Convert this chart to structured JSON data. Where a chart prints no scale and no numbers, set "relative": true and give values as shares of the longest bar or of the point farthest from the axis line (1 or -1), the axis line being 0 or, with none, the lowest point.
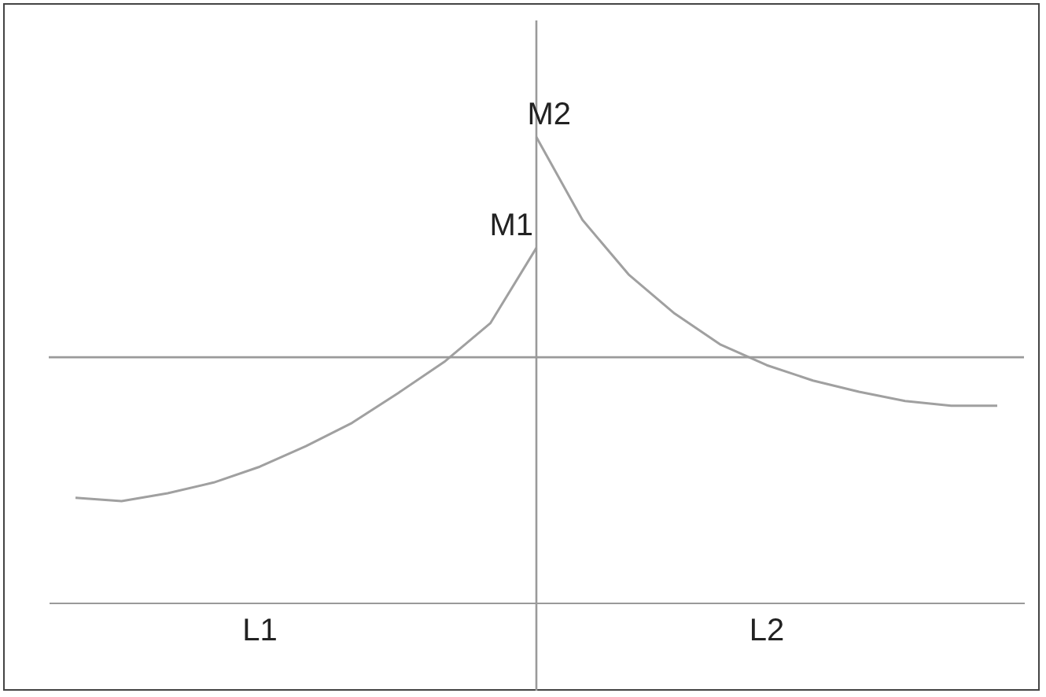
{
  "chart_data": {
    "type": "line",
    "relative": true,
    "categories": [
      null,
      null,
      null,
      null,
      null,
      null,
      null,
      null,
      null,
      null,
      null,
      null,
      null,
      null,
      null,
      null,
      null,
      null,
      null,
      null,
      null
    ],
    "series": [
      {
        "color": "#a0a0a0",
        "values": [
          0.225,
          0.218,
          0.235,
          0.258,
          0.292,
          0.336,
          0.386,
          0.45,
          0.517,
          0.6,
          0.762,
          null,
          null,
          null,
          null,
          null,
          null,
          null,
          null,
          null,
          null
        ]
      },
      {
        "color": "#a0a0a0",
        "values": [
          null,
          null,
          null,
          null,
          null,
          null,
          null,
          null,
          null,
          null,
          1.0,
          0.822,
          0.705,
          0.621,
          0.554,
          0.51,
          0.477,
          0.453,
          0.433,
          0.423,
          0.423
        ]
      }
    ],
    "ref_lines": [
      {
        "axis": "y",
        "value": 0.527,
        "color": "#9a9a9a"
      }
    ],
    "annotations": [
      "M1",
      "M2",
      "L1",
      "L2"
    ],
    "grid": false,
    "marker": "none",
    "line_style": "solid"
  }
}
